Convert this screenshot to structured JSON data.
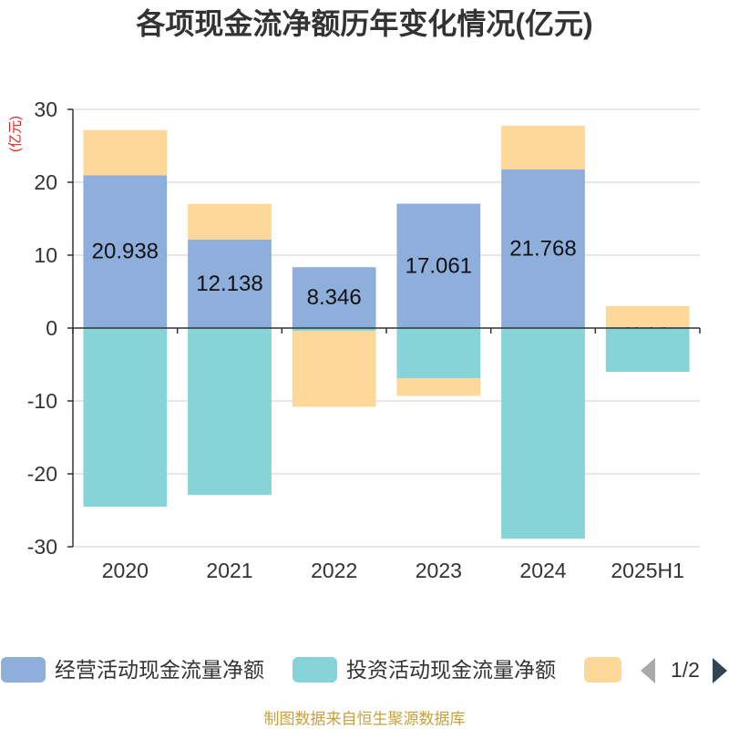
{
  "colors": {
    "title": "#333333",
    "axis": "#333333",
    "grid": "#cccccc",
    "unit_label": "#e0201e",
    "footer": "#c9a03c",
    "pager_active": "#2f4554",
    "pager_inactive": "#aaaaaa"
  },
  "legend": {
    "page": "1/2"
  },
  "footer": "制图数据来自恒生聚源数据库",
  "chart_data": {
    "type": "bar",
    "stacked": true,
    "title": "各项现金流净额历年变化情况(亿元)",
    "ylabel": "(亿元)",
    "categories": [
      "2020",
      "2021",
      "2022",
      "2023",
      "2024",
      "2025H1"
    ],
    "ylim": [
      -30,
      30
    ],
    "yticks": [
      30,
      20,
      10,
      0,
      -10,
      -20,
      -30
    ],
    "grid": true,
    "legend_position": "bottom",
    "series": [
      {
        "name": "经营活动现金流量净额",
        "color": "#8eaedb",
        "label_position": "inside",
        "values": [
          20.938,
          12.138,
          8.346,
          17.061,
          21.768,
          0.12
        ]
      },
      {
        "name": "投资活动现金流量净额",
        "color": "#86d4d8",
        "values": [
          -24.5,
          -22.9,
          -0.4,
          -6.9,
          -28.9,
          -6.0
        ]
      },
      {
        "color": "#fed899",
        "values": [
          6.2,
          4.9,
          -10.4,
          -2.4,
          6.0,
          2.9
        ]
      }
    ]
  }
}
